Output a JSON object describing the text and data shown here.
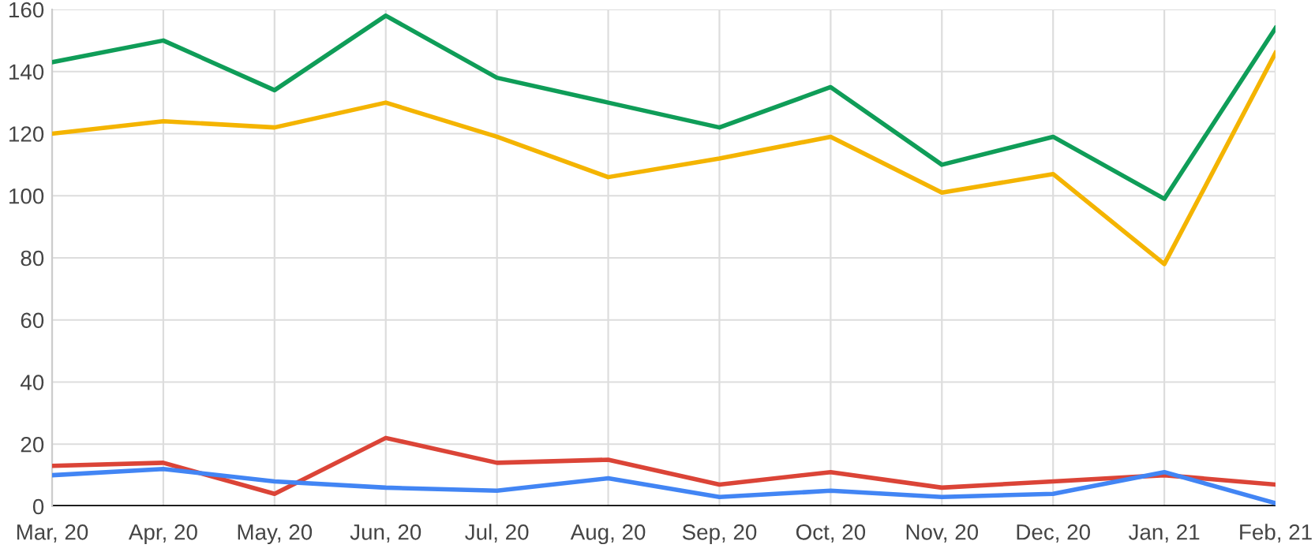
{
  "chart_data": {
    "type": "line",
    "categories": [
      "Mar, 20",
      "Apr, 20",
      "May, 20",
      "Jun, 20",
      "Jul, 20",
      "Aug, 20",
      "Sep, 20",
      "Oct, 20",
      "Nov, 20",
      "Dec, 20",
      "Jan, 21",
      "Feb, 21"
    ],
    "series": [
      {
        "color": "#0f9d58",
        "values": [
          143,
          150,
          134,
          158,
          138,
          130,
          122,
          135,
          110,
          119,
          99,
          154
        ]
      },
      {
        "color": "#f4b400",
        "values": [
          120,
          124,
          122,
          130,
          119,
          106,
          112,
          119,
          101,
          107,
          78,
          146
        ]
      },
      {
        "color": "#db4437",
        "values": [
          13,
          14,
          4,
          22,
          14,
          15,
          7,
          11,
          6,
          8,
          10,
          7
        ]
      },
      {
        "color": "#4285f4",
        "values": [
          10,
          12,
          8,
          6,
          5,
          9,
          3,
          5,
          3,
          4,
          11,
          1
        ]
      }
    ],
    "ylim": [
      0,
      160
    ],
    "yticks": [
      0,
      20,
      40,
      60,
      80,
      100,
      120,
      140,
      160
    ],
    "grid": true
  }
}
